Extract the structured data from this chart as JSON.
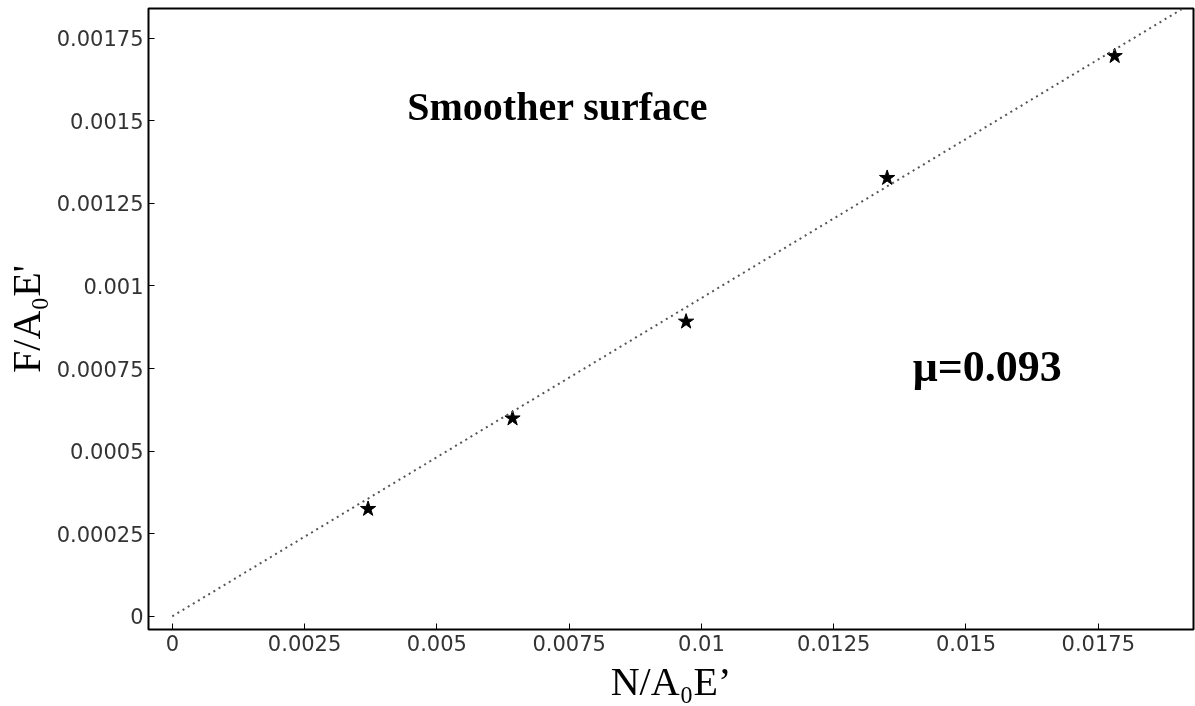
{
  "chart_data": {
    "type": "scatter",
    "xlabel": "N/A₀E’",
    "ylabel": "F/A₀E'",
    "annotations": [
      "Smoother surface",
      "μ=0.093"
    ],
    "xlim": [
      -0.00045,
      0.0193
    ],
    "ylim": [
      -4e-05,
      0.00184
    ],
    "xticks": [
      0,
      0.0025,
      0.005,
      0.0075,
      0.01,
      0.0125,
      0.015,
      0.0175
    ],
    "yticks": [
      0,
      0.00025,
      0.0005,
      0.00075,
      0.001,
      0.00125,
      0.0015,
      0.00175
    ],
    "grid": false,
    "series": [
      {
        "marker": "star",
        "color": "#000000",
        "x": [
          0.0037,
          0.00643,
          0.00971,
          0.01351,
          0.01781
        ],
        "values": [
          0.000325,
          0.000599,
          0.000892,
          0.001327,
          0.001696
        ]
      },
      {
        "type": "line",
        "line_style": "dotted",
        "color": "#555555",
        "x": [
          0,
          0.0191
        ],
        "values": [
          0,
          0.00184
        ]
      }
    ]
  }
}
